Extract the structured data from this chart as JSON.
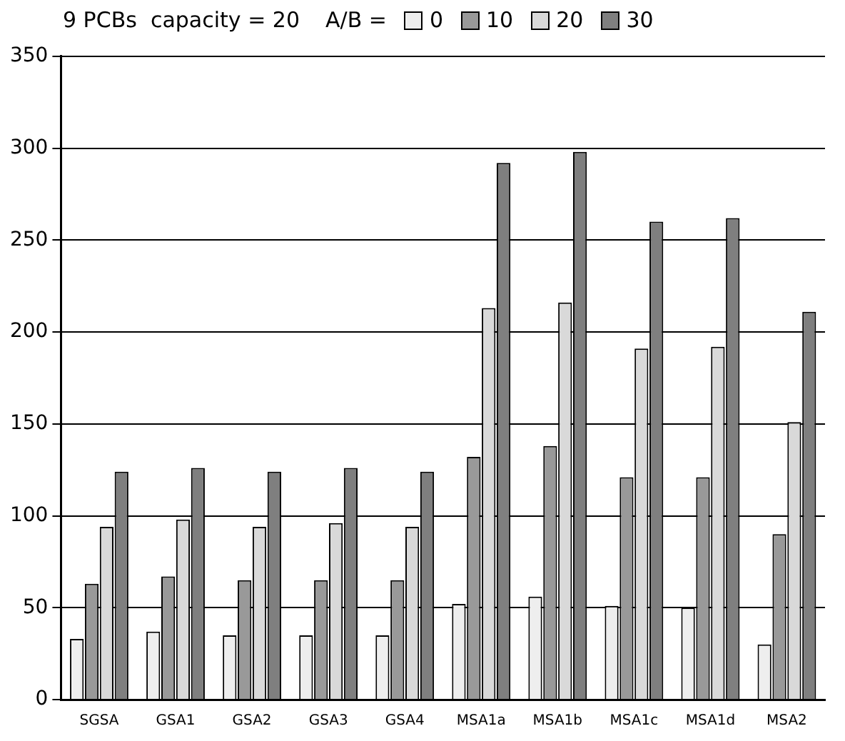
{
  "chart_data": {
    "type": "bar",
    "title": "9 PCBs  capacity = 20",
    "legend_title": "A/B =",
    "legend": "top",
    "categories": [
      "SGSA",
      "GSA1",
      "GSA2",
      "GSA3",
      "GSA4",
      "MSA1a",
      "MSA1b",
      "MSA1c",
      "MSA1d",
      "MSA2"
    ],
    "series": [
      {
        "name": "0",
        "color": "#eeeeee",
        "values": [
          33,
          37,
          35,
          35,
          35,
          52,
          56,
          51,
          50,
          30
        ]
      },
      {
        "name": "10",
        "color": "#999999",
        "values": [
          63,
          67,
          65,
          65,
          65,
          132,
          138,
          121,
          121,
          90
        ]
      },
      {
        "name": "20",
        "color": "#d9d9d9",
        "values": [
          94,
          98,
          94,
          96,
          94,
          213,
          216,
          191,
          192,
          151
        ]
      },
      {
        "name": "30",
        "color": "#7f7f7f",
        "values": [
          124,
          126,
          124,
          126,
          124,
          292,
          298,
          260,
          262,
          211
        ]
      }
    ],
    "ylim": [
      0,
      350
    ],
    "yticks": [
      0,
      50,
      100,
      150,
      200,
      250,
      300,
      350
    ],
    "grid": "y"
  }
}
